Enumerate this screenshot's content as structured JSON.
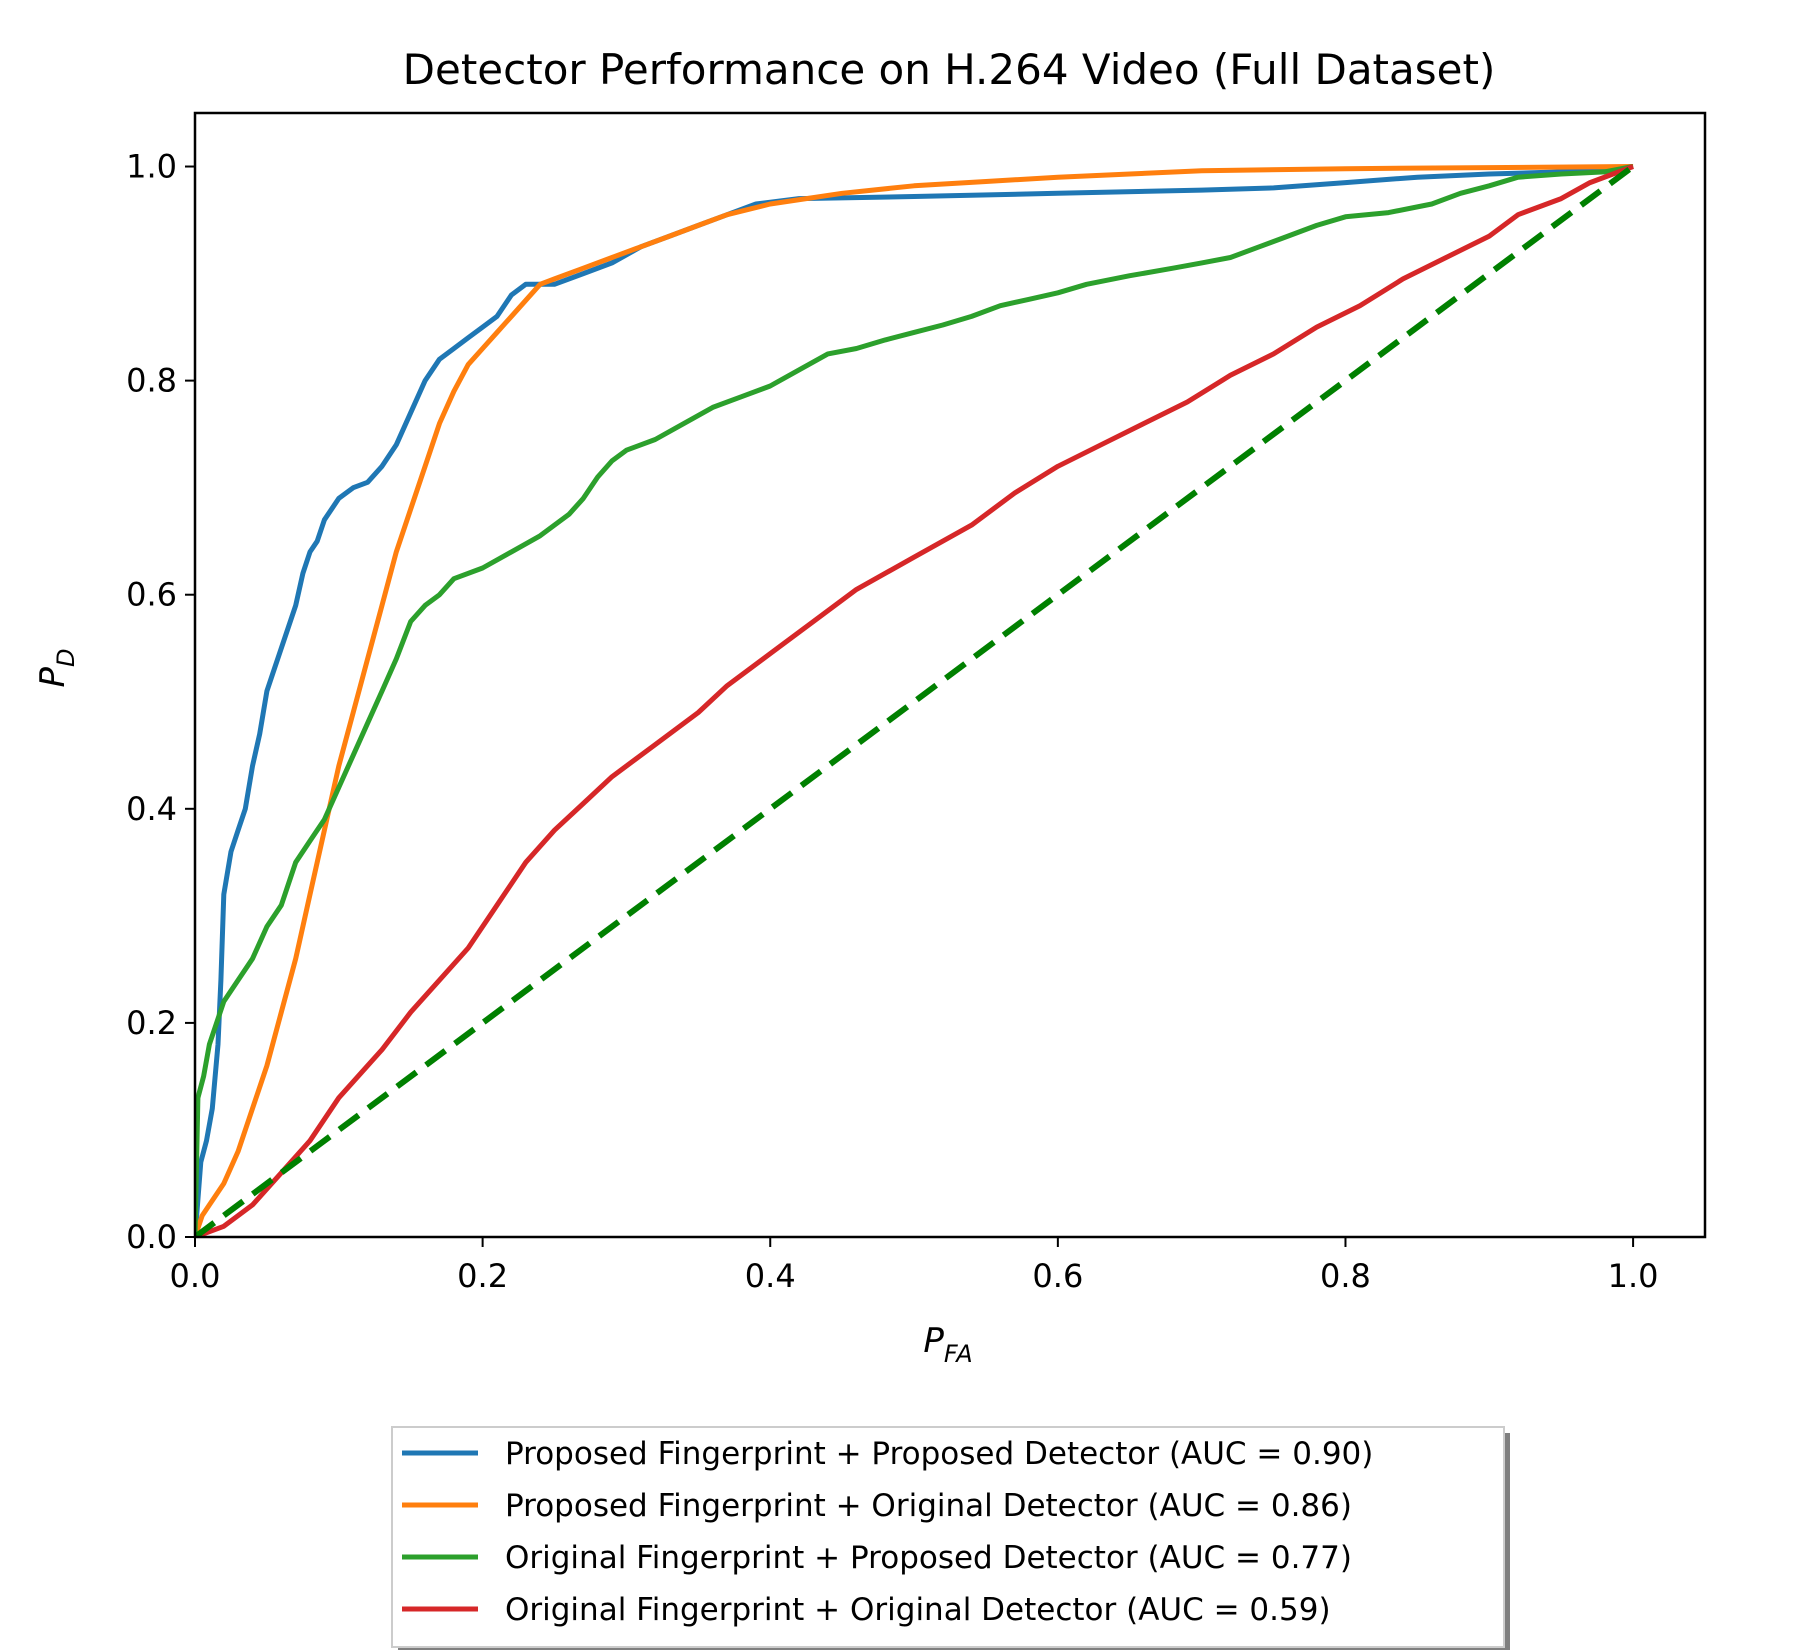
{
  "chart_data": {
    "type": "line",
    "title": "Detector Performance on H.264 Video (Full Dataset)",
    "xlabel": {
      "main": "P",
      "sub": "FA"
    },
    "ylabel": {
      "main": "P",
      "sub": "D"
    },
    "xlim": [
      0.0,
      1.05
    ],
    "ylim": [
      0.0,
      1.05
    ],
    "xticks": [
      "0.0",
      "0.2",
      "0.4",
      "0.6",
      "0.8",
      "1.0"
    ],
    "yticks": [
      "0.0",
      "0.2",
      "0.4",
      "0.6",
      "0.8",
      "1.0"
    ],
    "grid": false,
    "legend_position": "below-center",
    "series": [
      {
        "name": "Proposed Fingerprint + Proposed Detector (AUC = 0.90)",
        "color": "#1f77b4",
        "points": [
          [
            0.0,
            0.0
          ],
          [
            0.004,
            0.07
          ],
          [
            0.008,
            0.09
          ],
          [
            0.012,
            0.12
          ],
          [
            0.016,
            0.18
          ],
          [
            0.018,
            0.24
          ],
          [
            0.02,
            0.32
          ],
          [
            0.025,
            0.36
          ],
          [
            0.03,
            0.38
          ],
          [
            0.035,
            0.4
          ],
          [
            0.04,
            0.44
          ],
          [
            0.045,
            0.47
          ],
          [
            0.05,
            0.51
          ],
          [
            0.055,
            0.53
          ],
          [
            0.06,
            0.55
          ],
          [
            0.065,
            0.57
          ],
          [
            0.07,
            0.59
          ],
          [
            0.075,
            0.62
          ],
          [
            0.08,
            0.64
          ],
          [
            0.085,
            0.65
          ],
          [
            0.09,
            0.67
          ],
          [
            0.1,
            0.69
          ],
          [
            0.11,
            0.7
          ],
          [
            0.12,
            0.705
          ],
          [
            0.13,
            0.72
          ],
          [
            0.14,
            0.74
          ],
          [
            0.15,
            0.77
          ],
          [
            0.16,
            0.8
          ],
          [
            0.17,
            0.82
          ],
          [
            0.18,
            0.83
          ],
          [
            0.19,
            0.84
          ],
          [
            0.2,
            0.85
          ],
          [
            0.21,
            0.86
          ],
          [
            0.22,
            0.88
          ],
          [
            0.23,
            0.89
          ],
          [
            0.25,
            0.89
          ],
          [
            0.27,
            0.9
          ],
          [
            0.29,
            0.91
          ],
          [
            0.31,
            0.925
          ],
          [
            0.33,
            0.935
          ],
          [
            0.35,
            0.945
          ],
          [
            0.37,
            0.955
          ],
          [
            0.39,
            0.965
          ],
          [
            0.42,
            0.97
          ],
          [
            0.5,
            0.972
          ],
          [
            0.6,
            0.975
          ],
          [
            0.7,
            0.978
          ],
          [
            0.75,
            0.98
          ],
          [
            0.8,
            0.985
          ],
          [
            0.85,
            0.99
          ],
          [
            0.9,
            0.993
          ],
          [
            0.95,
            0.995
          ],
          [
            1.0,
            1.0
          ]
        ]
      },
      {
        "name": "Proposed Fingerprint + Original Detector (AUC = 0.86)",
        "color": "#ff7f0e",
        "points": [
          [
            0.0,
            0.0
          ],
          [
            0.005,
            0.02
          ],
          [
            0.01,
            0.03
          ],
          [
            0.02,
            0.05
          ],
          [
            0.03,
            0.08
          ],
          [
            0.04,
            0.12
          ],
          [
            0.05,
            0.16
          ],
          [
            0.06,
            0.21
          ],
          [
            0.07,
            0.26
          ],
          [
            0.08,
            0.32
          ],
          [
            0.09,
            0.38
          ],
          [
            0.1,
            0.44
          ],
          [
            0.11,
            0.49
          ],
          [
            0.12,
            0.54
          ],
          [
            0.13,
            0.59
          ],
          [
            0.14,
            0.64
          ],
          [
            0.15,
            0.68
          ],
          [
            0.16,
            0.72
          ],
          [
            0.17,
            0.76
          ],
          [
            0.18,
            0.79
          ],
          [
            0.19,
            0.815
          ],
          [
            0.2,
            0.83
          ],
          [
            0.21,
            0.845
          ],
          [
            0.22,
            0.86
          ],
          [
            0.23,
            0.875
          ],
          [
            0.24,
            0.89
          ],
          [
            0.25,
            0.895
          ],
          [
            0.27,
            0.905
          ],
          [
            0.29,
            0.915
          ],
          [
            0.31,
            0.925
          ],
          [
            0.33,
            0.935
          ],
          [
            0.35,
            0.945
          ],
          [
            0.37,
            0.955
          ],
          [
            0.4,
            0.965
          ],
          [
            0.45,
            0.975
          ],
          [
            0.5,
            0.982
          ],
          [
            0.55,
            0.986
          ],
          [
            0.6,
            0.99
          ],
          [
            0.65,
            0.993
          ],
          [
            0.7,
            0.996
          ],
          [
            0.8,
            0.998
          ],
          [
            0.9,
            0.999
          ],
          [
            1.0,
            1.0
          ]
        ]
      },
      {
        "name": "Original Fingerprint + Proposed Detector (AUC = 0.77)",
        "color": "#2ca02c",
        "points": [
          [
            0.0,
            0.0
          ],
          [
            0.002,
            0.13
          ],
          [
            0.006,
            0.15
          ],
          [
            0.01,
            0.18
          ],
          [
            0.015,
            0.2
          ],
          [
            0.02,
            0.22
          ],
          [
            0.03,
            0.24
          ],
          [
            0.04,
            0.26
          ],
          [
            0.05,
            0.29
          ],
          [
            0.06,
            0.31
          ],
          [
            0.07,
            0.35
          ],
          [
            0.08,
            0.37
          ],
          [
            0.09,
            0.39
          ],
          [
            0.1,
            0.42
          ],
          [
            0.11,
            0.45
          ],
          [
            0.12,
            0.48
          ],
          [
            0.13,
            0.51
          ],
          [
            0.14,
            0.54
          ],
          [
            0.15,
            0.575
          ],
          [
            0.16,
            0.59
          ],
          [
            0.17,
            0.6
          ],
          [
            0.18,
            0.615
          ],
          [
            0.2,
            0.625
          ],
          [
            0.22,
            0.64
          ],
          [
            0.24,
            0.655
          ],
          [
            0.26,
            0.675
          ],
          [
            0.27,
            0.69
          ],
          [
            0.28,
            0.71
          ],
          [
            0.29,
            0.725
          ],
          [
            0.3,
            0.735
          ],
          [
            0.32,
            0.745
          ],
          [
            0.34,
            0.76
          ],
          [
            0.36,
            0.775
          ],
          [
            0.38,
            0.785
          ],
          [
            0.4,
            0.795
          ],
          [
            0.42,
            0.81
          ],
          [
            0.44,
            0.825
          ],
          [
            0.46,
            0.83
          ],
          [
            0.48,
            0.838
          ],
          [
            0.5,
            0.845
          ],
          [
            0.52,
            0.852
          ],
          [
            0.54,
            0.86
          ],
          [
            0.56,
            0.87
          ],
          [
            0.58,
            0.876
          ],
          [
            0.6,
            0.882
          ],
          [
            0.62,
            0.89
          ],
          [
            0.65,
            0.898
          ],
          [
            0.68,
            0.905
          ],
          [
            0.7,
            0.91
          ],
          [
            0.72,
            0.915
          ],
          [
            0.74,
            0.925
          ],
          [
            0.76,
            0.935
          ],
          [
            0.78,
            0.945
          ],
          [
            0.8,
            0.953
          ],
          [
            0.83,
            0.957
          ],
          [
            0.86,
            0.965
          ],
          [
            0.88,
            0.975
          ],
          [
            0.9,
            0.982
          ],
          [
            0.92,
            0.99
          ],
          [
            0.95,
            0.993
          ],
          [
            0.98,
            0.995
          ],
          [
            1.0,
            1.0
          ]
        ]
      },
      {
        "name": "Original Fingerprint + Original Detector (AUC = 0.59)",
        "color": "#d62728",
        "points": [
          [
            0.0,
            0.0
          ],
          [
            0.02,
            0.01
          ],
          [
            0.04,
            0.03
          ],
          [
            0.06,
            0.06
          ],
          [
            0.08,
            0.09
          ],
          [
            0.1,
            0.13
          ],
          [
            0.12,
            0.16
          ],
          [
            0.13,
            0.175
          ],
          [
            0.15,
            0.21
          ],
          [
            0.17,
            0.24
          ],
          [
            0.19,
            0.27
          ],
          [
            0.21,
            0.31
          ],
          [
            0.23,
            0.35
          ],
          [
            0.25,
            0.38
          ],
          [
            0.27,
            0.405
          ],
          [
            0.29,
            0.43
          ],
          [
            0.32,
            0.46
          ],
          [
            0.35,
            0.49
          ],
          [
            0.37,
            0.515
          ],
          [
            0.4,
            0.545
          ],
          [
            0.43,
            0.575
          ],
          [
            0.46,
            0.605
          ],
          [
            0.5,
            0.635
          ],
          [
            0.54,
            0.665
          ],
          [
            0.57,
            0.695
          ],
          [
            0.6,
            0.72
          ],
          [
            0.63,
            0.74
          ],
          [
            0.66,
            0.76
          ],
          [
            0.69,
            0.78
          ],
          [
            0.72,
            0.805
          ],
          [
            0.75,
            0.825
          ],
          [
            0.78,
            0.85
          ],
          [
            0.81,
            0.87
          ],
          [
            0.84,
            0.895
          ],
          [
            0.87,
            0.915
          ],
          [
            0.9,
            0.935
          ],
          [
            0.92,
            0.955
          ],
          [
            0.95,
            0.97
          ],
          [
            0.97,
            0.985
          ],
          [
            1.0,
            1.0
          ]
        ]
      },
      {
        "name": "",
        "color": "#008000",
        "dashed": true,
        "points": [
          [
            0.0,
            0.0
          ],
          [
            1.0,
            1.0
          ]
        ]
      }
    ]
  }
}
